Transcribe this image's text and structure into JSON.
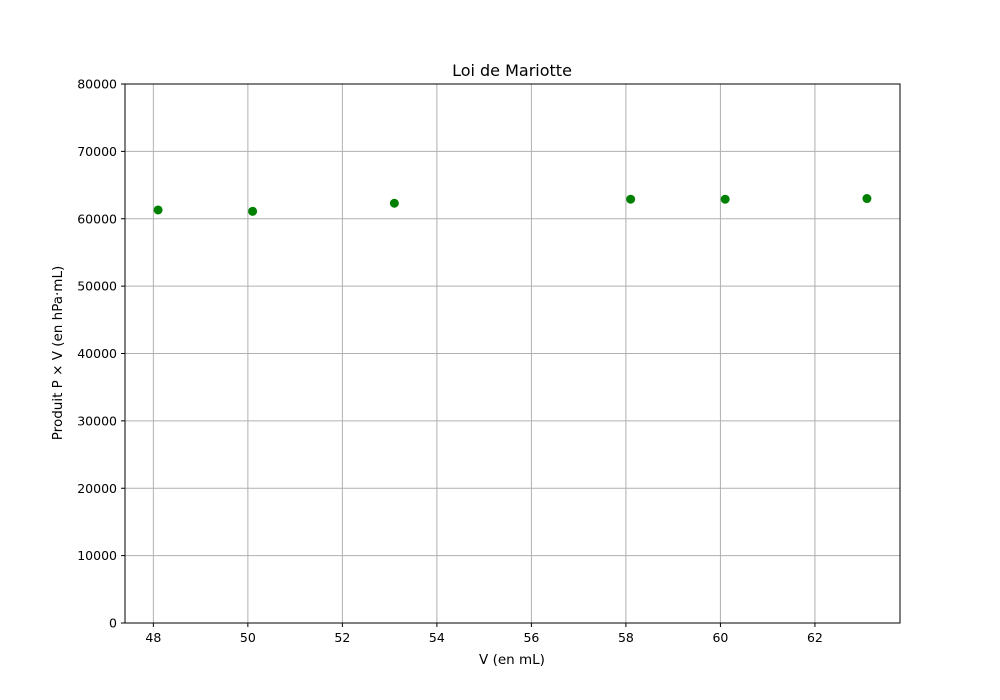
{
  "chart_data": {
    "type": "scatter",
    "title": "Loi de Mariotte",
    "xlabel": "V (en mL)",
    "ylabel": "Produit P × V (en hPa·mL)",
    "xlim": [
      47.4,
      63.8
    ],
    "ylim": [
      0,
      80000
    ],
    "xticks": [
      48,
      50,
      52,
      54,
      56,
      58,
      60,
      62
    ],
    "yticks": [
      0,
      10000,
      20000,
      30000,
      40000,
      50000,
      60000,
      70000,
      80000
    ],
    "grid": true,
    "color": "#008000",
    "series": [
      {
        "x": [
          48.1,
          50.1,
          53.1,
          58.1,
          60.1,
          63.1
        ],
        "y": [
          61300,
          61100,
          62300,
          62900,
          62900,
          63000
        ]
      }
    ]
  }
}
